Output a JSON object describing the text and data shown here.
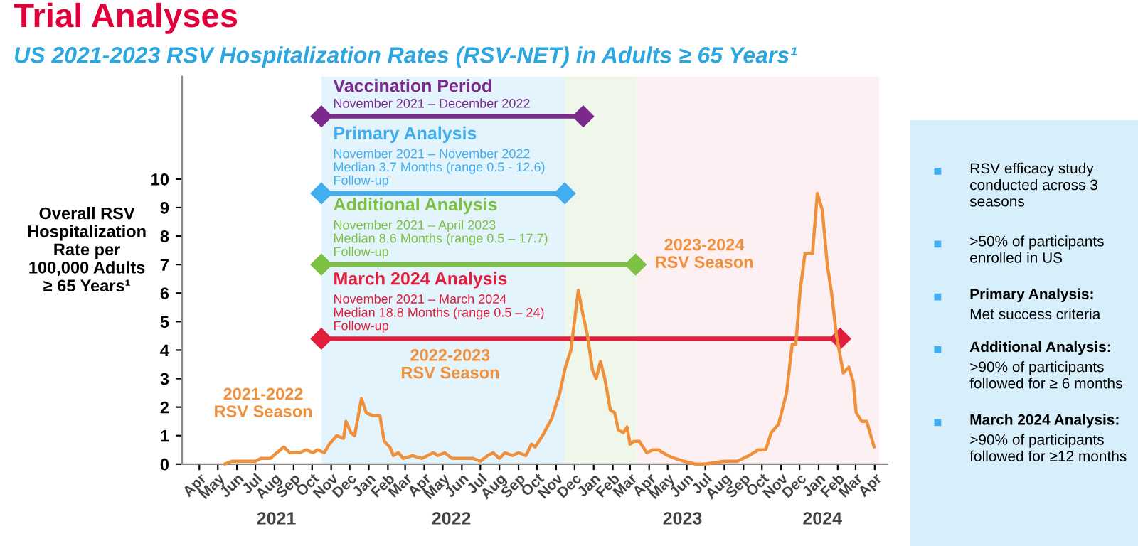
{
  "chart_data": [
    {
      "type": "line",
      "title": "Trial Analyses",
      "subtitle": "US 2021-2023 RSV Hospitalization Rates (RSV-NET) in Adults ≥ 65 Years¹",
      "ylabel": "Overall RSV\nHospitalization\nRate per\n100,000 Adults\n≥ 65 Years¹",
      "xlim": [
        "2021-03-04",
        "2024-04-22"
      ],
      "ylim": [
        0,
        13.6
      ],
      "yticks": [
        0,
        1,
        2,
        3,
        4,
        5,
        6,
        7,
        8,
        9,
        10
      ],
      "xticks": [
        {
          "value": "2021-04-01",
          "label": "Apr"
        },
        {
          "value": "2021-05-01",
          "label": "May"
        },
        {
          "value": "2021-06-01",
          "label": "Jun"
        },
        {
          "value": "2021-07-01",
          "label": "Jul"
        },
        {
          "value": "2021-08-01",
          "label": "Aug"
        },
        {
          "value": "2021-09-01",
          "label": "Sep"
        },
        {
          "value": "2021-10-01",
          "label": "Oct"
        },
        {
          "value": "2021-11-01",
          "label": "Nov"
        },
        {
          "value": "2021-12-01",
          "label": "Dec"
        },
        {
          "value": "2022-01-01",
          "label": "Jan"
        },
        {
          "value": "2022-02-01",
          "label": "Feb"
        },
        {
          "value": "2022-03-01",
          "label": "Mar"
        },
        {
          "value": "2022-04-01",
          "label": "Apr"
        },
        {
          "value": "2022-05-01",
          "label": "May"
        },
        {
          "value": "2022-06-01",
          "label": "Jun"
        },
        {
          "value": "2022-07-01",
          "label": "Jul"
        },
        {
          "value": "2022-08-01",
          "label": "Aug"
        },
        {
          "value": "2022-09-01",
          "label": "Sep"
        },
        {
          "value": "2022-10-01",
          "label": "Oct"
        },
        {
          "value": "2022-11-01",
          "label": "Nov"
        },
        {
          "value": "2022-12-01",
          "label": "Dec"
        },
        {
          "value": "2023-01-01",
          "label": "Jan"
        },
        {
          "value": "2023-02-01",
          "label": "Feb"
        },
        {
          "value": "2023-03-01",
          "label": "Mar"
        },
        {
          "value": "2023-04-01",
          "label": "Apr"
        },
        {
          "value": "2023-05-01",
          "label": "May"
        },
        {
          "value": "2023-06-01",
          "label": "Jun"
        },
        {
          "value": "2023-07-01",
          "label": "Jul"
        },
        {
          "value": "2023-08-01",
          "label": "Aug"
        },
        {
          "value": "2023-09-01",
          "label": "Sep"
        },
        {
          "value": "2023-10-01",
          "label": "Oct"
        },
        {
          "value": "2023-11-01",
          "label": "Nov"
        },
        {
          "value": "2023-12-01",
          "label": "Dec"
        },
        {
          "value": "2024-01-01",
          "label": "Jan"
        },
        {
          "value": "2024-02-01",
          "label": "Feb"
        },
        {
          "value": "2024-03-01",
          "label": "Mar"
        },
        {
          "value": "2024-04-01",
          "label": "Apr"
        }
      ],
      "x2lim": [
        "2021-03-04",
        "2024-04-22"
      ],
      "x2ticks": [
        {
          "value": "2021-08-04",
          "label": "2021"
        },
        {
          "value": "2022-05-15",
          "label": "2022"
        },
        {
          "value": "2023-05-25",
          "label": "2023"
        },
        {
          "value": "2024-01-07",
          "label": "2024"
        }
      ],
      "bands": [
        {
          "axis": "x",
          "from": "2021-10-16",
          "to": "2022-11-15",
          "color": "#e4f4fc"
        },
        {
          "axis": "x",
          "from": "2022-11-15",
          "to": "2023-03-12",
          "color": "#eff7ea"
        },
        {
          "axis": "x",
          "from": "2023-03-12",
          "to": "2024-04-08",
          "color": "#fcf0f2"
        }
      ],
      "grid": false,
      "legend": false,
      "line_style": "solid",
      "marker": "none",
      "series": [
        {
          "color": "#f0903a",
          "x": [
            "2021-05-12",
            "2021-05-24",
            "2021-07-01",
            "2021-07-10",
            "2021-07-25",
            "2021-08-16",
            "2021-08-26",
            "2021-09-10",
            "2021-09-22",
            "2021-10-02",
            "2021-10-10",
            "2021-10-21",
            "2021-10-29",
            "2021-11-10",
            "2021-11-21",
            "2021-11-25",
            "2021-12-03",
            "2021-12-09",
            "2021-12-20",
            "2021-12-28",
            "2022-01-07",
            "2022-01-19",
            "2022-01-26",
            "2022-02-04",
            "2022-02-10",
            "2022-02-18",
            "2022-02-26",
            "2022-03-13",
            "2022-03-28",
            "2022-04-16",
            "2022-04-23",
            "2022-05-04",
            "2022-05-16",
            "2022-06-19",
            "2022-07-01",
            "2022-07-13",
            "2022-07-22",
            "2022-08-01",
            "2022-08-10",
            "2022-08-22",
            "2022-09-01",
            "2022-09-13",
            "2022-09-22",
            "2022-09-28",
            "2022-10-10",
            "2022-10-25",
            "2022-11-07",
            "2022-11-16",
            "2022-11-25",
            "2022-12-07",
            "2022-12-14",
            "2022-12-22",
            "2022-12-30",
            "2023-01-05",
            "2023-01-12",
            "2023-01-19",
            "2023-01-28",
            "2023-02-04",
            "2023-02-10",
            "2023-02-18",
            "2023-02-24",
            "2023-03-01",
            "2023-03-07",
            "2023-03-16",
            "2023-03-22",
            "2023-03-28",
            "2023-04-07",
            "2023-04-16",
            "2023-05-01",
            "2023-05-13",
            "2023-05-28",
            "2023-06-16",
            "2023-07-01",
            "2023-08-01",
            "2023-08-22",
            "2023-09-10",
            "2023-09-25",
            "2023-10-07",
            "2023-10-16",
            "2023-10-28",
            "2023-11-10",
            "2023-11-19",
            "2023-11-25",
            "2023-12-02",
            "2023-12-10",
            "2023-12-22",
            "2023-12-30",
            "2024-01-07",
            "2024-01-15",
            "2024-01-22",
            "2024-01-30",
            "2024-02-10",
            "2024-02-19",
            "2024-02-26",
            "2024-03-02",
            "2024-03-11",
            "2024-03-19",
            "2024-03-31"
          ],
          "values": [
            0,
            0.1,
            0.1,
            0.2,
            0.2,
            0.6,
            0.4,
            0.4,
            0.5,
            0.4,
            0.5,
            0.4,
            0.7,
            1.0,
            0.9,
            1.5,
            1.1,
            1.0,
            2.3,
            1.8,
            1.7,
            1.7,
            0.8,
            0.6,
            0.3,
            0.4,
            0.2,
            0.3,
            0.2,
            0.4,
            0.3,
            0.4,
            0.2,
            0.2,
            0.1,
            0.3,
            0.4,
            0.2,
            0.4,
            0.3,
            0.4,
            0.3,
            0.7,
            0.6,
            1.0,
            1.6,
            2.5,
            3.4,
            4.0,
            6.1,
            5.3,
            4.5,
            3.3,
            3.0,
            3.6,
            3.0,
            1.9,
            1.8,
            1.2,
            1.1,
            1.3,
            0.7,
            0.8,
            0.8,
            0.6,
            0.4,
            0.5,
            0.5,
            0.3,
            0.2,
            0.1,
            0,
            0,
            0.1,
            0.1,
            0.3,
            0.5,
            0.5,
            1.1,
            1.4,
            2.5,
            4.2,
            4.2,
            6.1,
            7.4,
            7.4,
            9.5,
            8.9,
            7.0,
            6.0,
            4.5,
            3.2,
            3.4,
            2.9,
            1.8,
            1.5,
            1.5,
            0.6
          ]
        },
        {
          "name": "Vaccination Period",
          "color": "#7b2a8c",
          "marker": "diamond",
          "x": [
            "2021-10-16",
            "2022-12-15"
          ],
          "values": [
            12.2,
            12.2
          ]
        },
        {
          "name": "Primary Analysis",
          "color": "#41aef0",
          "marker": "diamond",
          "x": [
            "2021-10-16",
            "2022-11-15"
          ],
          "values": [
            9.5,
            9.5
          ]
        },
        {
          "name": "Additional Analysis",
          "color": "#7dc142",
          "marker": "diamond",
          "x": [
            "2021-10-16",
            "2023-03-10"
          ],
          "values": [
            7.0,
            7.0
          ]
        },
        {
          "name": "March 2024 Analysis",
          "color": "#e31e3c",
          "marker": "diamond",
          "x": [
            "2021-10-16",
            "2024-02-05"
          ],
          "values": [
            4.4,
            4.4
          ]
        }
      ],
      "annotations": [
        {
          "text": "November 2021 – December 2022",
          "x": "2021-10-16",
          "y": 12.2
        },
        {
          "text": "November 2021 – November 2022\nMedian 3.7 Months (range 0.5 - 12.6)\nFollow-up",
          "x": "2021-10-16",
          "y": 9.5
        },
        {
          "text": "November 2021 – April 2023\nMedian 8.6 Months (range 0.5 – 17.7)\nFollow-up",
          "x": "2021-10-16",
          "y": 7.0
        },
        {
          "text": "November 2021 – March 2024\nMedian 18.8 Months (range 0.5 – 24)\nFollow-up",
          "x": "2021-10-16",
          "y": 4.4
        },
        "2021-2022\nRSV Season",
        "2022-2023\nRSV Season",
        "2023-2024\nRSV Season"
      ]
    },
    {
      "type": "other",
      "annotations": [
        "RSV efficacy study\nconducted across 3\nseasons",
        ">50% of participants\nenrolled in US",
        "Primary Analysis:\nMet success criteria",
        "Additional Analysis:\n>90% of participants\nfollowed for ≥ 6 months",
        "March 2024 Analysis:\n>90% of participants\nfollowed for ≥12 months"
      ]
    }
  ]
}
